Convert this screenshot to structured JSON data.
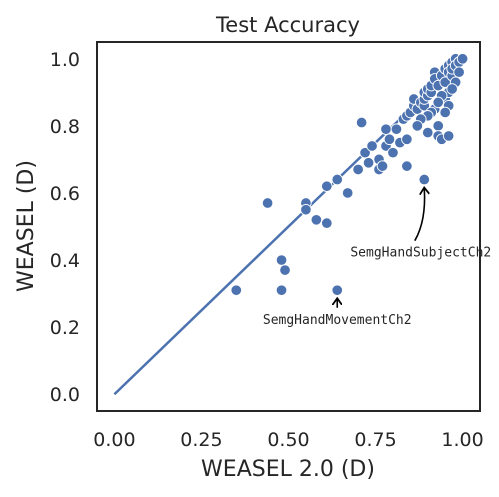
{
  "chart_data": {
    "type": "scatter",
    "title": "Test Accuracy",
    "xlabel": "WEASEL 2.0 (D)",
    "ylabel": "WEASEL (D)",
    "xlim": [
      -0.05,
      1.05
    ],
    "ylim": [
      -0.05,
      1.05
    ],
    "xticks": [
      "0.00",
      "0.25",
      "0.50",
      "0.75",
      "1.00"
    ],
    "yticks": [
      "0.0",
      "0.2",
      "0.4",
      "0.6",
      "0.8",
      "1.0"
    ],
    "grid": false,
    "colors": {
      "marker": "#4c72b0",
      "line": "#4c72b0",
      "frame": "#262626"
    },
    "reference_line": {
      "from": [
        0,
        0
      ],
      "to": [
        1,
        1
      ]
    },
    "points": [
      [
        0.35,
        0.31
      ],
      [
        0.44,
        0.57
      ],
      [
        0.48,
        0.31
      ],
      [
        0.48,
        0.4
      ],
      [
        0.49,
        0.37
      ],
      [
        0.55,
        0.57
      ],
      [
        0.55,
        0.55
      ],
      [
        0.58,
        0.52
      ],
      [
        0.61,
        0.51
      ],
      [
        0.61,
        0.62
      ],
      [
        0.64,
        0.64
      ],
      [
        0.64,
        0.31
      ],
      [
        0.67,
        0.6
      ],
      [
        0.7,
        0.67
      ],
      [
        0.71,
        0.81
      ],
      [
        0.72,
        0.72
      ],
      [
        0.73,
        0.69
      ],
      [
        0.74,
        0.74
      ],
      [
        0.76,
        0.67
      ],
      [
        0.76,
        0.7
      ],
      [
        0.77,
        0.68
      ],
      [
        0.78,
        0.74
      ],
      [
        0.78,
        0.79
      ],
      [
        0.79,
        0.76
      ],
      [
        0.8,
        0.72
      ],
      [
        0.81,
        0.79
      ],
      [
        0.82,
        0.75
      ],
      [
        0.83,
        0.82
      ],
      [
        0.84,
        0.76
      ],
      [
        0.84,
        0.83
      ],
      [
        0.84,
        0.68
      ],
      [
        0.85,
        0.84
      ],
      [
        0.86,
        0.86
      ],
      [
        0.86,
        0.88
      ],
      [
        0.87,
        0.85
      ],
      [
        0.88,
        0.87
      ],
      [
        0.89,
        0.86
      ],
      [
        0.89,
        0.64
      ],
      [
        0.89,
        0.88
      ],
      [
        0.89,
        0.9
      ],
      [
        0.9,
        0.89
      ],
      [
        0.9,
        0.78
      ],
      [
        0.9,
        0.91
      ],
      [
        0.91,
        0.9
      ],
      [
        0.91,
        0.92
      ],
      [
        0.92,
        0.96
      ],
      [
        0.92,
        0.85
      ],
      [
        0.92,
        0.94
      ],
      [
        0.93,
        0.8
      ],
      [
        0.93,
        0.77
      ],
      [
        0.93,
        0.92
      ],
      [
        0.94,
        0.76
      ],
      [
        0.94,
        0.95
      ],
      [
        0.95,
        0.97
      ],
      [
        0.95,
        0.93
      ],
      [
        0.95,
        0.88
      ],
      [
        0.96,
        0.98
      ],
      [
        0.96,
        0.96
      ],
      [
        0.96,
        0.9
      ],
      [
        0.96,
        0.77
      ],
      [
        0.97,
        0.99
      ],
      [
        0.97,
        0.95
      ],
      [
        0.97,
        0.97
      ],
      [
        0.98,
        1.0
      ],
      [
        0.98,
        0.98
      ],
      [
        0.99,
        0.99
      ],
      [
        1.0,
        1.0
      ],
      [
        0.99,
        0.96
      ],
      [
        0.98,
        0.93
      ],
      [
        0.97,
        0.91
      ],
      [
        0.96,
        0.86
      ],
      [
        0.95,
        0.84
      ],
      [
        0.94,
        0.89
      ],
      [
        0.93,
        0.87
      ],
      [
        0.91,
        0.84
      ],
      [
        0.9,
        0.83
      ],
      [
        0.88,
        0.82
      ],
      [
        0.87,
        0.8
      ]
    ],
    "annotations": [
      {
        "text": "SemgHandSubjectCh2",
        "point": [
          0.89,
          0.64
        ],
        "label_at": [
          0.88,
          0.41
        ]
      },
      {
        "text": "SemgHandMovementCh2",
        "point": [
          0.64,
          0.31
        ],
        "label_at": [
          0.64,
          0.21
        ]
      }
    ]
  }
}
